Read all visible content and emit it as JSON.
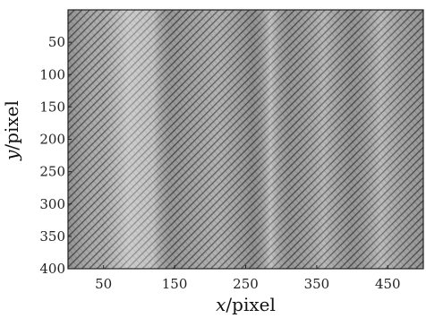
{
  "chart_data": {
    "type": "heatmap",
    "title": "",
    "xlabel_var": "x",
    "xlabel_unit": "/pixel",
    "ylabel_var": "y",
    "ylabel_unit": "/pixel",
    "xlim": [
      0,
      500
    ],
    "ylim": [
      0,
      400
    ],
    "y_inverted": true,
    "x_ticks": [
      50,
      150,
      250,
      350,
      450
    ],
    "y_ticks": [
      50,
      100,
      150,
      200,
      250,
      300,
      350,
      400
    ],
    "x_tick_labels": [
      "50",
      "150",
      "250",
      "350",
      "450"
    ],
    "y_tick_labels": [
      "50",
      "100",
      "150",
      "200",
      "250",
      "300",
      "350",
      "400"
    ],
    "colormap": "grayscale",
    "pattern": "fine diagonal fringe / speckle texture with vertical bands",
    "fringe_period_pixels": 6,
    "brightest_band_x": [
      [
        80,
        130
      ],
      [
        275,
        300
      ]
    ],
    "colorbar": false,
    "grid": false
  }
}
